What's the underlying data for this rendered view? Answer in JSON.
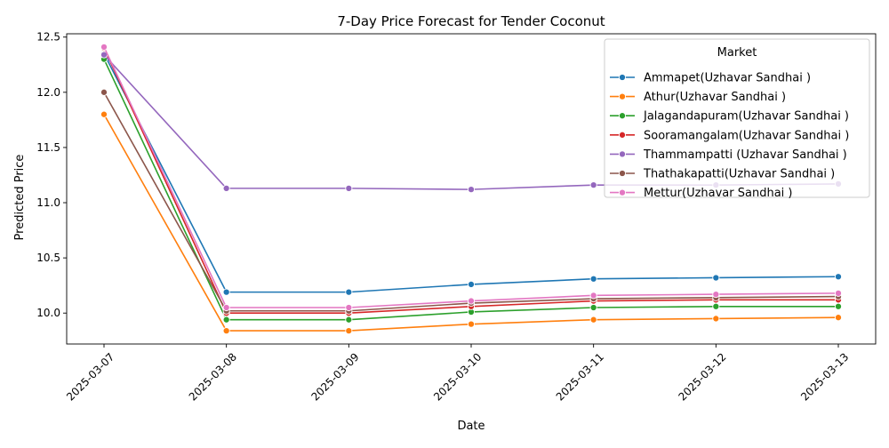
{
  "chart_data": {
    "type": "line",
    "title": "7-Day Price Forecast for Tender Coconut",
    "xlabel": "Date",
    "ylabel": "Predicted Price",
    "x": [
      "2025-03-07",
      "2025-03-08",
      "2025-03-09",
      "2025-03-10",
      "2025-03-11",
      "2025-03-12",
      "2025-03-13"
    ],
    "yticks": [
      "10.0",
      "10.5",
      "11.0",
      "11.5",
      "12.0",
      "12.5"
    ],
    "ylim": [
      9.72,
      12.53
    ],
    "grid": false,
    "legend": {
      "title": "Market",
      "placement": "top-right"
    },
    "series": [
      {
        "name": "Ammapet(Uzhavar Sandhai )",
        "color": "#1f77b4",
        "values": [
          12.35,
          10.19,
          10.19,
          10.26,
          10.31,
          10.32,
          10.33
        ]
      },
      {
        "name": "Athur(Uzhavar Sandhai )",
        "color": "#ff7f0e",
        "values": [
          11.8,
          9.84,
          9.84,
          9.9,
          9.94,
          9.95,
          9.96
        ]
      },
      {
        "name": "Jalagandapuram(Uzhavar Sandhai )",
        "color": "#2ca02c",
        "values": [
          12.3,
          9.94,
          9.94,
          10.01,
          10.05,
          10.06,
          10.06
        ]
      },
      {
        "name": "Sooramangalam(Uzhavar Sandhai )",
        "color": "#d62728",
        "values": [
          12.4,
          10.0,
          10.0,
          10.06,
          10.11,
          10.12,
          10.12
        ]
      },
      {
        "name": "Thammampatti (Uzhavar Sandhai )",
        "color": "#9467bd",
        "values": [
          12.34,
          11.13,
          11.13,
          11.12,
          11.16,
          11.16,
          11.17
        ]
      },
      {
        "name": "Thathakapatti(Uzhavar Sandhai )",
        "color": "#8c564b",
        "values": [
          12.0,
          10.02,
          10.02,
          10.09,
          10.13,
          10.14,
          10.15
        ]
      },
      {
        "name": "Mettur(Uzhavar Sandhai )",
        "color": "#e377c2",
        "values": [
          12.41,
          10.05,
          10.05,
          10.11,
          10.16,
          10.17,
          10.18
        ]
      }
    ]
  }
}
